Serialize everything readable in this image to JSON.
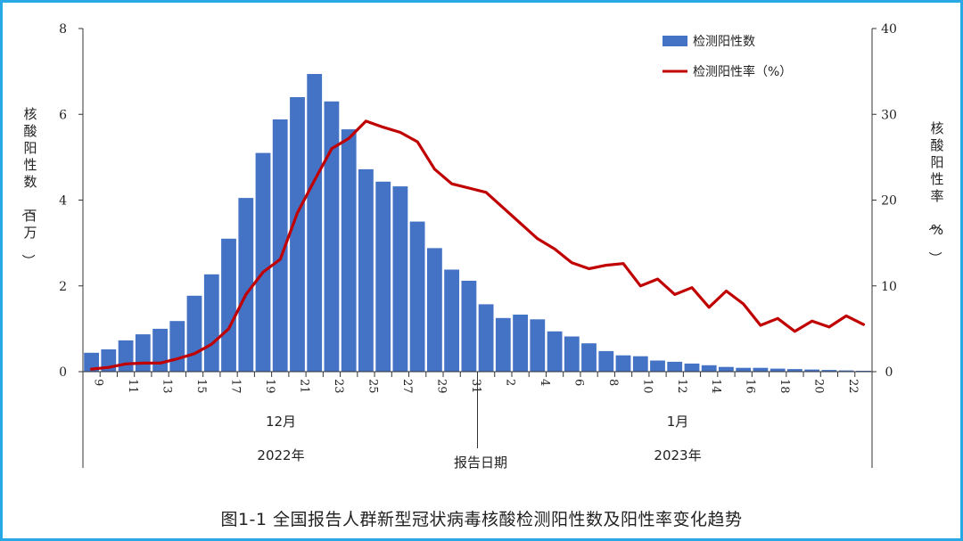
{
  "caption": "图1-1 全国报告人群新型冠状病毒核酸检测阳性数及阳性率变化趋势",
  "colors": {
    "bars": "#4472c4",
    "line": "#c00000",
    "frame": "#28a9e6"
  },
  "chart_data": {
    "type": "bar+line",
    "title": "",
    "y_left": {
      "label": "核酸阳性数（百万）",
      "ticks": [
        "0",
        "2",
        "4",
        "6",
        "8"
      ],
      "range": [
        0,
        8
      ]
    },
    "y_right": {
      "label": "核酸阳性率（%）",
      "ticks": [
        "0",
        "10",
        "20",
        "30",
        "40"
      ],
      "range": [
        0,
        40
      ]
    },
    "x_tick_labels": [
      "9",
      "11",
      "13",
      "15",
      "17",
      "19",
      "21",
      "23",
      "25",
      "27",
      "29",
      "31",
      "2",
      "4",
      "6",
      "8",
      "10",
      "12",
      "14",
      "16",
      "18",
      "20",
      "22"
    ],
    "month_labels": [
      "12月",
      "1月"
    ],
    "year_labels": [
      "2022年",
      "2023年"
    ],
    "x_axis_label": "报告日期",
    "dates": [
      "12/9",
      "12/10",
      "12/11",
      "12/12",
      "12/13",
      "12/14",
      "12/15",
      "12/16",
      "12/17",
      "12/18",
      "12/19",
      "12/20",
      "12/21",
      "12/22",
      "12/23",
      "12/24",
      "12/25",
      "12/26",
      "12/27",
      "12/28",
      "12/29",
      "12/30",
      "12/31",
      "1/1",
      "1/2",
      "1/3",
      "1/4",
      "1/5",
      "1/6",
      "1/7",
      "1/8",
      "1/9",
      "1/10",
      "1/11",
      "1/12",
      "1/13",
      "1/14",
      "1/15",
      "1/16",
      "1/17",
      "1/18",
      "1/19",
      "1/20",
      "1/21",
      "1/22",
      "1/23"
    ],
    "legend": {
      "bars": "检测阳性数",
      "line": "检测阳性率（%）"
    },
    "series": [
      {
        "name": "检测阳性数",
        "type": "bar",
        "axis": "left",
        "values": [
          0.44,
          0.52,
          0.73,
          0.87,
          1.0,
          1.18,
          1.77,
          2.27,
          3.1,
          4.05,
          5.1,
          5.88,
          6.4,
          6.94,
          6.3,
          5.65,
          4.72,
          4.43,
          4.32,
          3.5,
          2.88,
          2.38,
          2.12,
          1.57,
          1.25,
          1.33,
          1.22,
          0.94,
          0.82,
          0.66,
          0.48,
          0.38,
          0.36,
          0.26,
          0.23,
          0.19,
          0.15,
          0.11,
          0.09,
          0.09,
          0.07,
          0.06,
          0.05,
          0.04,
          0.03,
          0.02
        ]
      },
      {
        "name": "检测阳性率（%）",
        "type": "line",
        "axis": "right",
        "values": [
          0.3,
          0.5,
          0.9,
          1.0,
          1.0,
          1.5,
          2.1,
          3.2,
          5.0,
          9.0,
          11.6,
          13.1,
          18.5,
          22.3,
          26.0,
          27.2,
          29.2,
          28.5,
          27.9,
          26.8,
          23.6,
          21.9,
          21.4,
          20.9,
          19.1,
          17.3,
          15.5,
          14.3,
          12.7,
          12.0,
          12.4,
          12.6,
          10.0,
          10.8,
          9.0,
          9.8,
          7.5,
          9.4,
          7.9,
          5.4,
          6.2,
          4.7,
          5.9,
          5.2,
          6.5,
          5.5
        ]
      }
    ]
  }
}
